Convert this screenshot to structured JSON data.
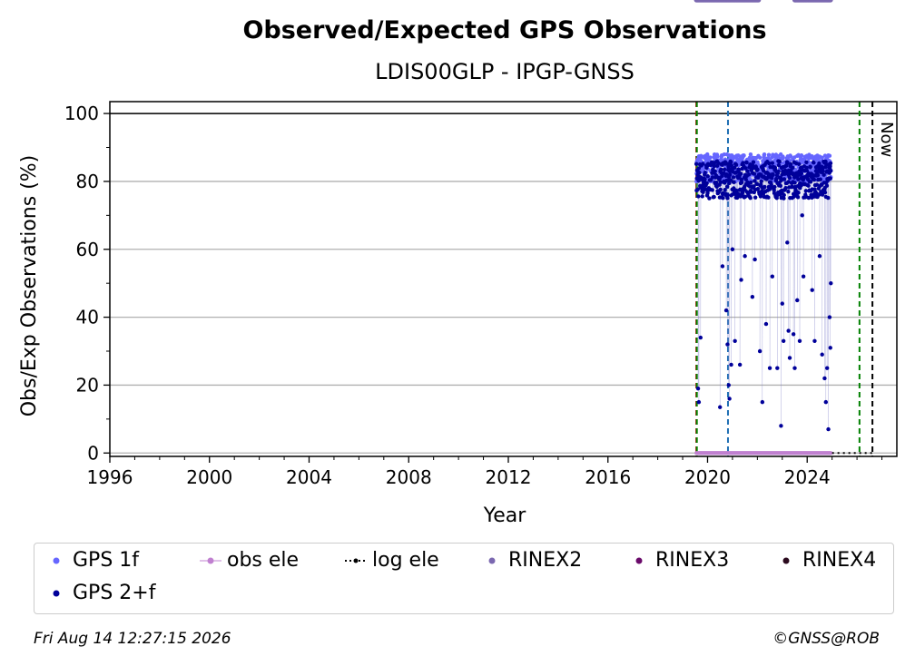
{
  "chart_data": {
    "type": "scatter",
    "title": "Observed/Expected GPS Observations",
    "subtitle": "LDIS00GLP - IPGP-GNSS",
    "xlabel": "Year",
    "ylabel": "Obs/Exp Observations (%)",
    "xlim": [
      1996,
      2027.6
    ],
    "ylim": [
      -1,
      103.5
    ],
    "xticks": [
      1996,
      2000,
      2004,
      2008,
      2012,
      2016,
      2020,
      2024
    ],
    "yticks": [
      0,
      20,
      40,
      60,
      80,
      100
    ],
    "grid": "horizontal",
    "reference_line_y": 100,
    "vertical_lines": [
      {
        "x": 2019.55,
        "color": "#cc0000",
        "style": "dashed"
      },
      {
        "x": 2019.57,
        "color": "#008000",
        "style": "dashed"
      },
      {
        "x": 2020.82,
        "color": "#1f6fb4",
        "style": "dashed"
      },
      {
        "x": 2026.1,
        "color": "#008000",
        "style": "dashed"
      },
      {
        "x": 2026.62,
        "color": "#000000",
        "style": "dashed",
        "label": "Now"
      }
    ],
    "data_range": {
      "start": 2019.55,
      "end": 2024.95
    },
    "series": [
      {
        "name": "GPS 1f",
        "color": "#6666ff",
        "typical_range": [
          80,
          88
        ]
      },
      {
        "name": "GPS 2+f",
        "color": "#00009a",
        "typical_range": [
          75,
          86
        ]
      },
      {
        "name": "obs ele",
        "color": "#c080d0",
        "value": 0
      },
      {
        "name": "log ele",
        "color": "#000000",
        "value": 0,
        "x_range": [
          2025.0,
          2026.62
        ]
      },
      {
        "name": "RINEX2",
        "color": "#7b68b0"
      },
      {
        "name": "RINEX3",
        "color": "#6a0a6a",
        "value": 102
      },
      {
        "name": "RINEX4",
        "color": "#2b0a1e"
      }
    ],
    "rinex3_segments": [
      [
        2019.55,
        2022.05
      ],
      [
        2023.5,
        2024.95
      ]
    ],
    "outliers_gps2f": [
      [
        2019.62,
        19
      ],
      [
        2019.65,
        15
      ],
      [
        2019.72,
        34
      ],
      [
        2020.5,
        13.5
      ],
      [
        2020.6,
        55
      ],
      [
        2020.75,
        42
      ],
      [
        2020.8,
        32
      ],
      [
        2020.85,
        20
      ],
      [
        2020.88,
        16
      ],
      [
        2020.95,
        26
      ],
      [
        2021.0,
        60
      ],
      [
        2021.1,
        33
      ],
      [
        2021.3,
        26
      ],
      [
        2021.35,
        51
      ],
      [
        2021.5,
        58
      ],
      [
        2021.8,
        46
      ],
      [
        2021.9,
        57
      ],
      [
        2022.1,
        30
      ],
      [
        2022.2,
        15
      ],
      [
        2022.35,
        38
      ],
      [
        2022.5,
        25
      ],
      [
        2022.6,
        52
      ],
      [
        2022.8,
        25
      ],
      [
        2022.95,
        8
      ],
      [
        2023.0,
        44
      ],
      [
        2023.05,
        33
      ],
      [
        2023.2,
        62
      ],
      [
        2023.25,
        36
      ],
      [
        2023.3,
        28
      ],
      [
        2023.45,
        35
      ],
      [
        2023.5,
        25
      ],
      [
        2023.6,
        45
      ],
      [
        2023.7,
        33
      ],
      [
        2023.8,
        70
      ],
      [
        2023.85,
        52
      ],
      [
        2024.2,
        48
      ],
      [
        2024.3,
        33
      ],
      [
        2024.5,
        58
      ],
      [
        2024.6,
        29
      ],
      [
        2024.7,
        22
      ],
      [
        2024.75,
        15
      ],
      [
        2024.8,
        25
      ],
      [
        2024.85,
        7
      ],
      [
        2024.9,
        40
      ],
      [
        2024.93,
        31
      ],
      [
        2024.95,
        50
      ]
    ]
  },
  "legend": [
    {
      "label": "GPS 1f",
      "color": "#6666ff",
      "marker": "dot"
    },
    {
      "label": "obs ele",
      "color": "#c080d0",
      "marker": "line-dot"
    },
    {
      "label": "log ele",
      "color": "#000000",
      "marker": "dotted-line"
    },
    {
      "label": "RINEX2",
      "color": "#7b68b0",
      "marker": "dot"
    },
    {
      "label": "RINEX3",
      "color": "#6a0a6a",
      "marker": "dot"
    },
    {
      "label": "RINEX4",
      "color": "#2b0a1e",
      "marker": "dot"
    },
    {
      "label": "GPS 2+f",
      "color": "#00009a",
      "marker": "dot"
    }
  ],
  "footer": {
    "timestamp": "Fri Aug 14 12:27:15 2026",
    "credit": "©GNSS@ROB"
  }
}
